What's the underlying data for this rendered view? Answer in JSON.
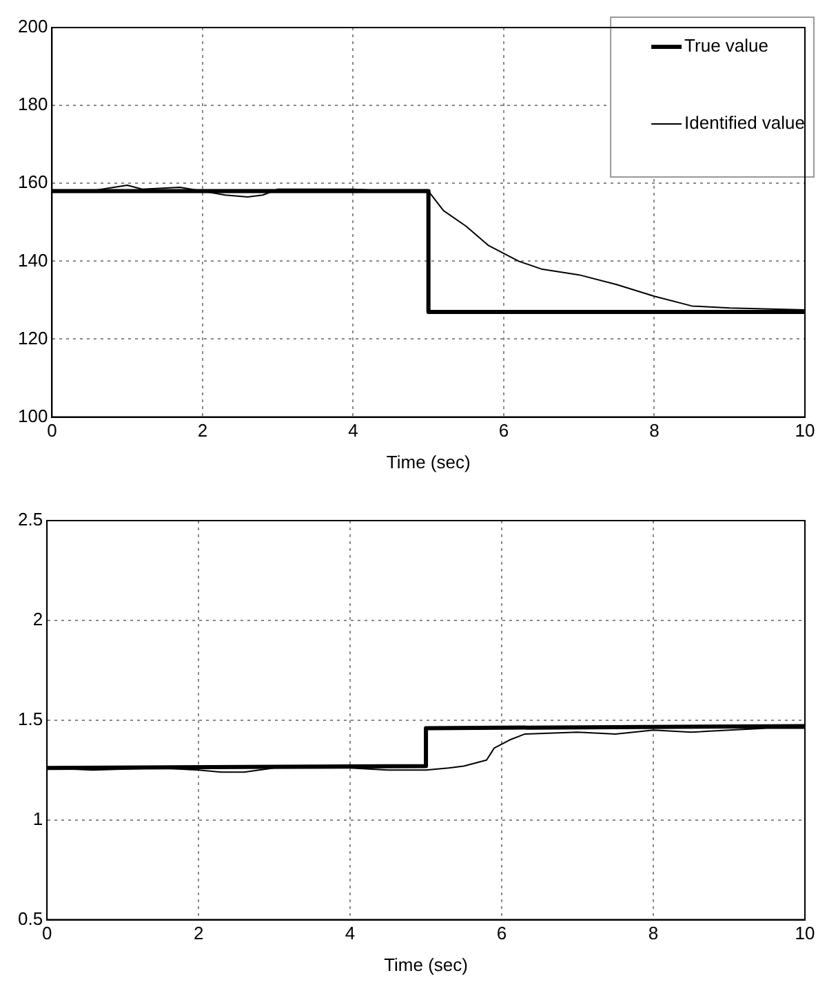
{
  "chart_data": [
    {
      "type": "line",
      "xlabel": "Time (sec)",
      "xlim": [
        0,
        10
      ],
      "xticks": [
        0,
        2,
        4,
        6,
        8,
        10
      ],
      "ylim": [
        100,
        200
      ],
      "yticks": [
        100,
        120,
        140,
        160,
        180,
        200
      ],
      "grid": true,
      "legend": "top right",
      "marker": "none",
      "line_style": "solid",
      "series": [
        {
          "name": "True value",
          "color": "#000000",
          "x": [
            0,
            5,
            5,
            10
          ],
          "values": [
            158,
            158,
            127,
            127
          ]
        },
        {
          "name": "Identified value",
          "color": "#000000",
          "x": [
            0,
            0.5,
            1,
            1.2,
            1.7,
            2,
            2.3,
            2.6,
            2.8,
            3,
            4,
            4.5,
            5,
            5.2,
            5.5,
            5.8,
            6.2,
            6.5,
            7,
            7.5,
            8,
            8.5,
            9,
            10
          ],
          "values": [
            158,
            158,
            159.5,
            158.5,
            159,
            158,
            157,
            156.5,
            157,
            158.5,
            158.5,
            158,
            158,
            153,
            149,
            144,
            140,
            138,
            136.5,
            134,
            131,
            128.5,
            128,
            127.5
          ]
        }
      ]
    },
    {
      "type": "line",
      "xlabel": "Time (sec)",
      "xlim": [
        0,
        10
      ],
      "xticks": [
        0,
        2,
        4,
        6,
        8,
        10
      ],
      "ylim": [
        0.5,
        2.5
      ],
      "yticks": [
        0.5,
        1,
        1.5,
        2,
        2.5
      ],
      "grid": true,
      "marker": "none",
      "line_style": "solid",
      "series": [
        {
          "color": "#000000",
          "x": [
            0,
            5,
            5,
            10
          ],
          "values": [
            1.26,
            1.27,
            1.46,
            1.47
          ]
        },
        {
          "color": "#000000",
          "x": [
            0,
            0.6,
            1.5,
            2,
            2.3,
            2.6,
            3,
            4,
            4.5,
            5,
            5.3,
            5.5,
            5.8,
            5.9,
            6.1,
            6.3,
            7,
            7.5,
            8,
            8.5,
            9,
            9.5,
            10
          ],
          "values": [
            1.26,
            1.25,
            1.26,
            1.25,
            1.24,
            1.24,
            1.26,
            1.26,
            1.25,
            1.25,
            1.26,
            1.27,
            1.3,
            1.36,
            1.4,
            1.43,
            1.44,
            1.43,
            1.45,
            1.44,
            1.45,
            1.46,
            1.46
          ]
        }
      ]
    }
  ]
}
